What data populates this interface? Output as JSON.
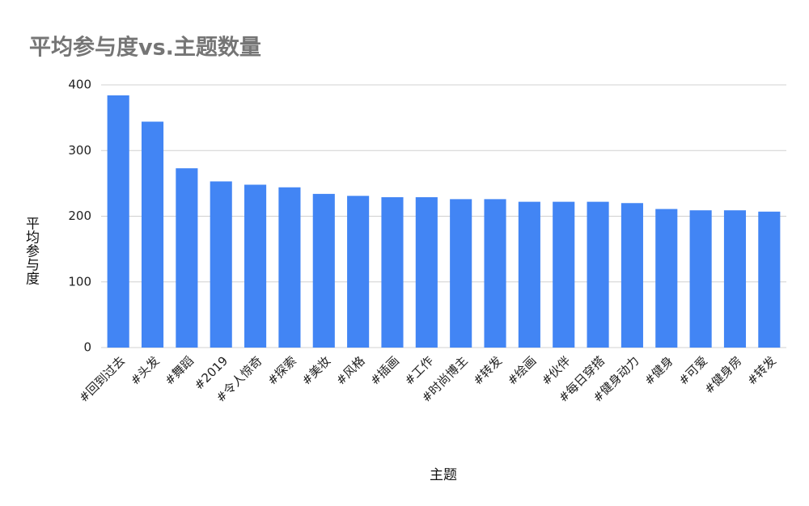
{
  "chart_data": {
    "type": "bar",
    "title": "平均参与度vs.主题数量",
    "x_label": "主题",
    "y_label": "平均参与度",
    "categories": [
      "#回到过去",
      "#头发",
      "#舞蹈",
      "#2019",
      "#令人惊奇",
      "#探索",
      "#美妆",
      "#风格",
      "#插画",
      "#工作",
      "#时尚博主",
      "#转发",
      "#绘画",
      "#伙伴",
      "#每日穿搭",
      "#健身动力",
      "#健身",
      "#可爱",
      "#健身房",
      "#转发"
    ],
    "values": [
      384,
      344,
      273,
      253,
      248,
      244,
      234,
      231,
      229,
      229,
      226,
      226,
      222,
      222,
      222,
      220,
      211,
      209,
      209,
      207
    ],
    "color": "#4285f4",
    "ylim": [
      0,
      400
    ],
    "yticks": [
      0,
      100,
      200,
      300,
      400
    ],
    "grid": true
  }
}
